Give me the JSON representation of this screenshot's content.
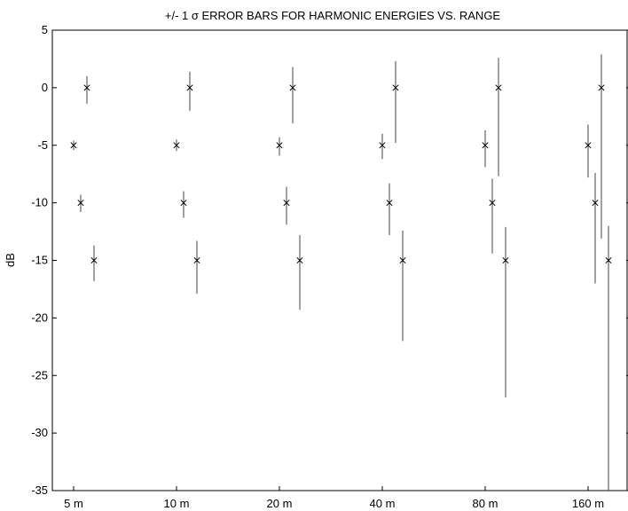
{
  "chart_data": {
    "type": "scatter",
    "title": "+/- 1 σ ERROR BARS FOR HARMONIC ENERGIES VS. RANGE",
    "xlabel": "",
    "ylabel": "dB",
    "categories": [
      "5 m",
      "10 m",
      "20 m",
      "40 m",
      "80 m",
      "160 m"
    ],
    "ylim": [
      -35,
      5
    ],
    "yticks": [
      5,
      0,
      -5,
      -10,
      -15,
      -20,
      -25,
      -30,
      -35
    ],
    "grid": false,
    "legend": "none",
    "marker": "x",
    "series": [
      {
        "values": [
          0,
          0,
          0,
          0,
          0,
          0
        ],
        "err_low": [
          -1.4,
          -2.0,
          -3.1,
          -4.8,
          -7.7,
          -13.1
        ],
        "err_high": [
          1.0,
          1.4,
          1.8,
          2.3,
          2.6,
          2.9
        ]
      },
      {
        "values": [
          -5,
          -5,
          -5,
          -5,
          -5,
          -5
        ],
        "err_low": [
          -5.4,
          -5.5,
          -5.9,
          -6.2,
          -6.9,
          -7.8
        ],
        "err_high": [
          -4.6,
          -4.5,
          -4.3,
          -4.0,
          -3.7,
          -3.2
        ]
      },
      {
        "values": [
          -10,
          -10,
          -10,
          -10,
          -10,
          -10
        ],
        "err_low": [
          -10.8,
          -11.3,
          -11.9,
          -12.8,
          -14.4,
          -17.0
        ],
        "err_high": [
          -9.3,
          -9.0,
          -8.6,
          -8.3,
          -7.9,
          -7.4
        ]
      },
      {
        "values": [
          -15,
          -15,
          -15,
          -15,
          -15,
          -15
        ],
        "err_low": [
          -16.8,
          -17.9,
          -19.3,
          -22.0,
          -26.9,
          -35.0
        ],
        "err_high": [
          -13.7,
          -13.3,
          -12.8,
          -12.4,
          -12.1,
          -12.0
        ]
      }
    ]
  }
}
